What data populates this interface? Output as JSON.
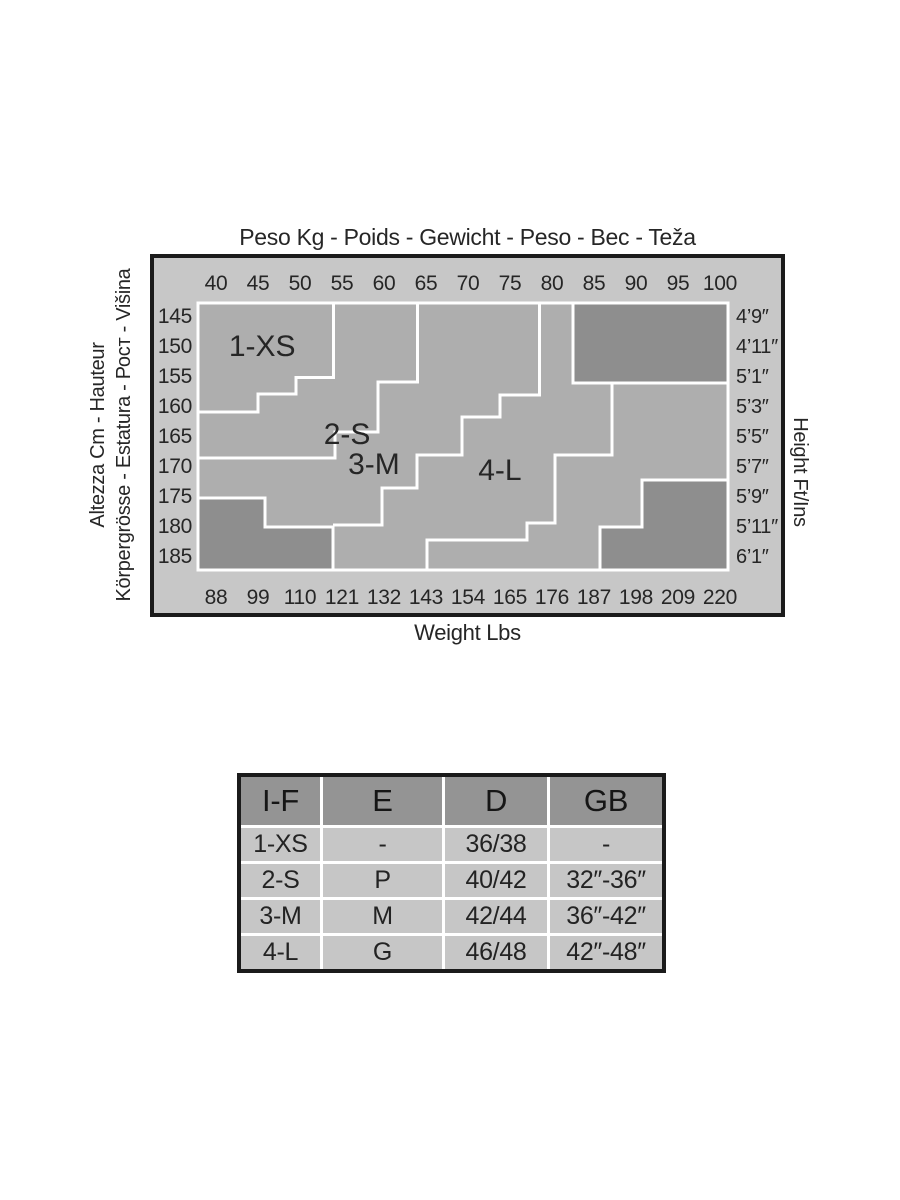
{
  "figure_title_top": "Peso Kg - Poids - Gewicht - Peso - Bec - Teža",
  "figure_title_bottom": "Weight Lbs",
  "left_axis_title_outer": "Altezza Cm - Hauteur",
  "left_axis_title_inner": "Körpergrösse - Estatura - Рост - Višina",
  "right_axis_title": "Height Ft/Ins",
  "colors": {
    "frame": "#1b1b1b",
    "label_band": "#c7c7c7",
    "plot_bg": "#aeaeae",
    "blocked_region": "#8e8e8e",
    "divider_line": "#ffffff",
    "text": "#262626",
    "table_header_bg": "#949494",
    "table_row_bg": "#c6c6c6"
  },
  "chart_data": [
    {
      "type": "heatmap",
      "subtype": "stepped-size-zone-map",
      "title": "Peso Kg - Poids - Gewicht - Peso - Bec - Teža",
      "xlabel_bottom": "Weight Lbs",
      "x_ticks_top_kg": [
        "40",
        "45",
        "50",
        "55",
        "60",
        "65",
        "70",
        "75",
        "80",
        "85",
        "90",
        "95",
        "100"
      ],
      "x_ticks_bottom_lbs": [
        "88",
        "99",
        "110",
        "121",
        "132",
        "143",
        "154",
        "165",
        "176",
        "187",
        "198",
        "209",
        "220"
      ],
      "y_ticks_left_cm": [
        "145",
        "150",
        "155",
        "160",
        "165",
        "170",
        "175",
        "180",
        "185"
      ],
      "y_ticks_right_ftins": [
        "4’9″",
        "4’11″",
        "5’1″",
        "5’3″",
        "5’5″",
        "5’7″",
        "5’9″",
        "5’11″",
        "6’1″"
      ],
      "x_range_kg": [
        40,
        100
      ],
      "y_range_cm": [
        145,
        185
      ],
      "zones": [
        {
          "name": "1-XS",
          "label": "1-XS",
          "label_at_kg_cm": [
            45.5,
            150.0
          ],
          "right_boundary_kg_cm": [
            [
              54,
              142.83
            ],
            [
              54,
              155.25
            ],
            [
              49.5,
              155.25
            ],
            [
              49.5,
              158
            ],
            [
              45,
              158
            ],
            [
              45,
              161
            ],
            [
              37.86,
              161
            ]
          ]
        },
        {
          "name": "2-S",
          "label": "2-S",
          "label_at_kg_cm": [
            55.6,
            164.7
          ],
          "right_boundary_kg_cm": [
            [
              64,
              142.83
            ],
            [
              64,
              156
            ],
            [
              59.3,
              156
            ],
            [
              59.3,
              164.35
            ],
            [
              54.15,
              164.35
            ],
            [
              54.15,
              168.65
            ],
            [
              37.86,
              168.65
            ]
          ]
        },
        {
          "name": "3-M",
          "label": "3-M",
          "label_at_kg_cm": [
            58.8,
            169.7
          ],
          "right_boundary_kg_cm": [
            [
              78.5,
              142.83
            ],
            [
              78.5,
              158.15
            ],
            [
              73.8,
              158.15
            ],
            [
              73.8,
              161.85
            ],
            [
              69.3,
              161.85
            ],
            [
              69.3,
              168.15
            ],
            [
              63.95,
              168.15
            ],
            [
              63.95,
              173.65
            ],
            [
              59.75,
              173.65
            ],
            [
              59.75,
              179.85
            ],
            [
              53.95,
              179.85
            ]
          ]
        },
        {
          "name": "4-L",
          "label": "4-L",
          "label_at_kg_cm": [
            73.8,
            170.7
          ],
          "right_boundary_kg_cm": [
            [
              87.15,
              156.17
            ],
            [
              87.15,
              168.15
            ],
            [
              80.36,
              168.15
            ],
            [
              80.36,
              179.5
            ],
            [
              77,
              179.5
            ],
            [
              77,
              182.35
            ],
            [
              65.1,
              182.35
            ],
            [
              65.1,
              187.33
            ]
          ]
        }
      ],
      "blocked_regions": [
        {
          "name": "top-right",
          "polygon_kg_cm": [
            [
              82.5,
              142.83
            ],
            [
              100.95,
              142.83
            ],
            [
              100.95,
              156.17
            ],
            [
              82.5,
              156.17
            ]
          ]
        },
        {
          "name": "bottom-left",
          "polygon_kg_cm": [
            [
              37.86,
              175.33
            ],
            [
              45.83,
              175.33
            ],
            [
              45.83,
              180.17
            ],
            [
              53.95,
              180.17
            ],
            [
              53.95,
              187.33
            ],
            [
              37.86,
              187.33
            ]
          ]
        },
        {
          "name": "bottom-right",
          "polygon_kg_cm": [
            [
              90.71,
              172.33
            ],
            [
              100.95,
              172.33
            ],
            [
              100.95,
              187.33
            ],
            [
              85.71,
              187.33
            ],
            [
              85.71,
              180.17
            ],
            [
              90.71,
              180.17
            ]
          ]
        }
      ]
    },
    {
      "type": "table",
      "headers": [
        "I-F",
        "E",
        "D",
        "GB"
      ],
      "rows": [
        [
          "1-XS",
          "-",
          "36/38",
          "-"
        ],
        [
          "2-S",
          "P",
          "40/42",
          "32″-36″"
        ],
        [
          "3-M",
          "M",
          "42/44",
          "36″-42″"
        ],
        [
          "4-L",
          "G",
          "46/48",
          "42″-48″"
        ]
      ]
    }
  ]
}
